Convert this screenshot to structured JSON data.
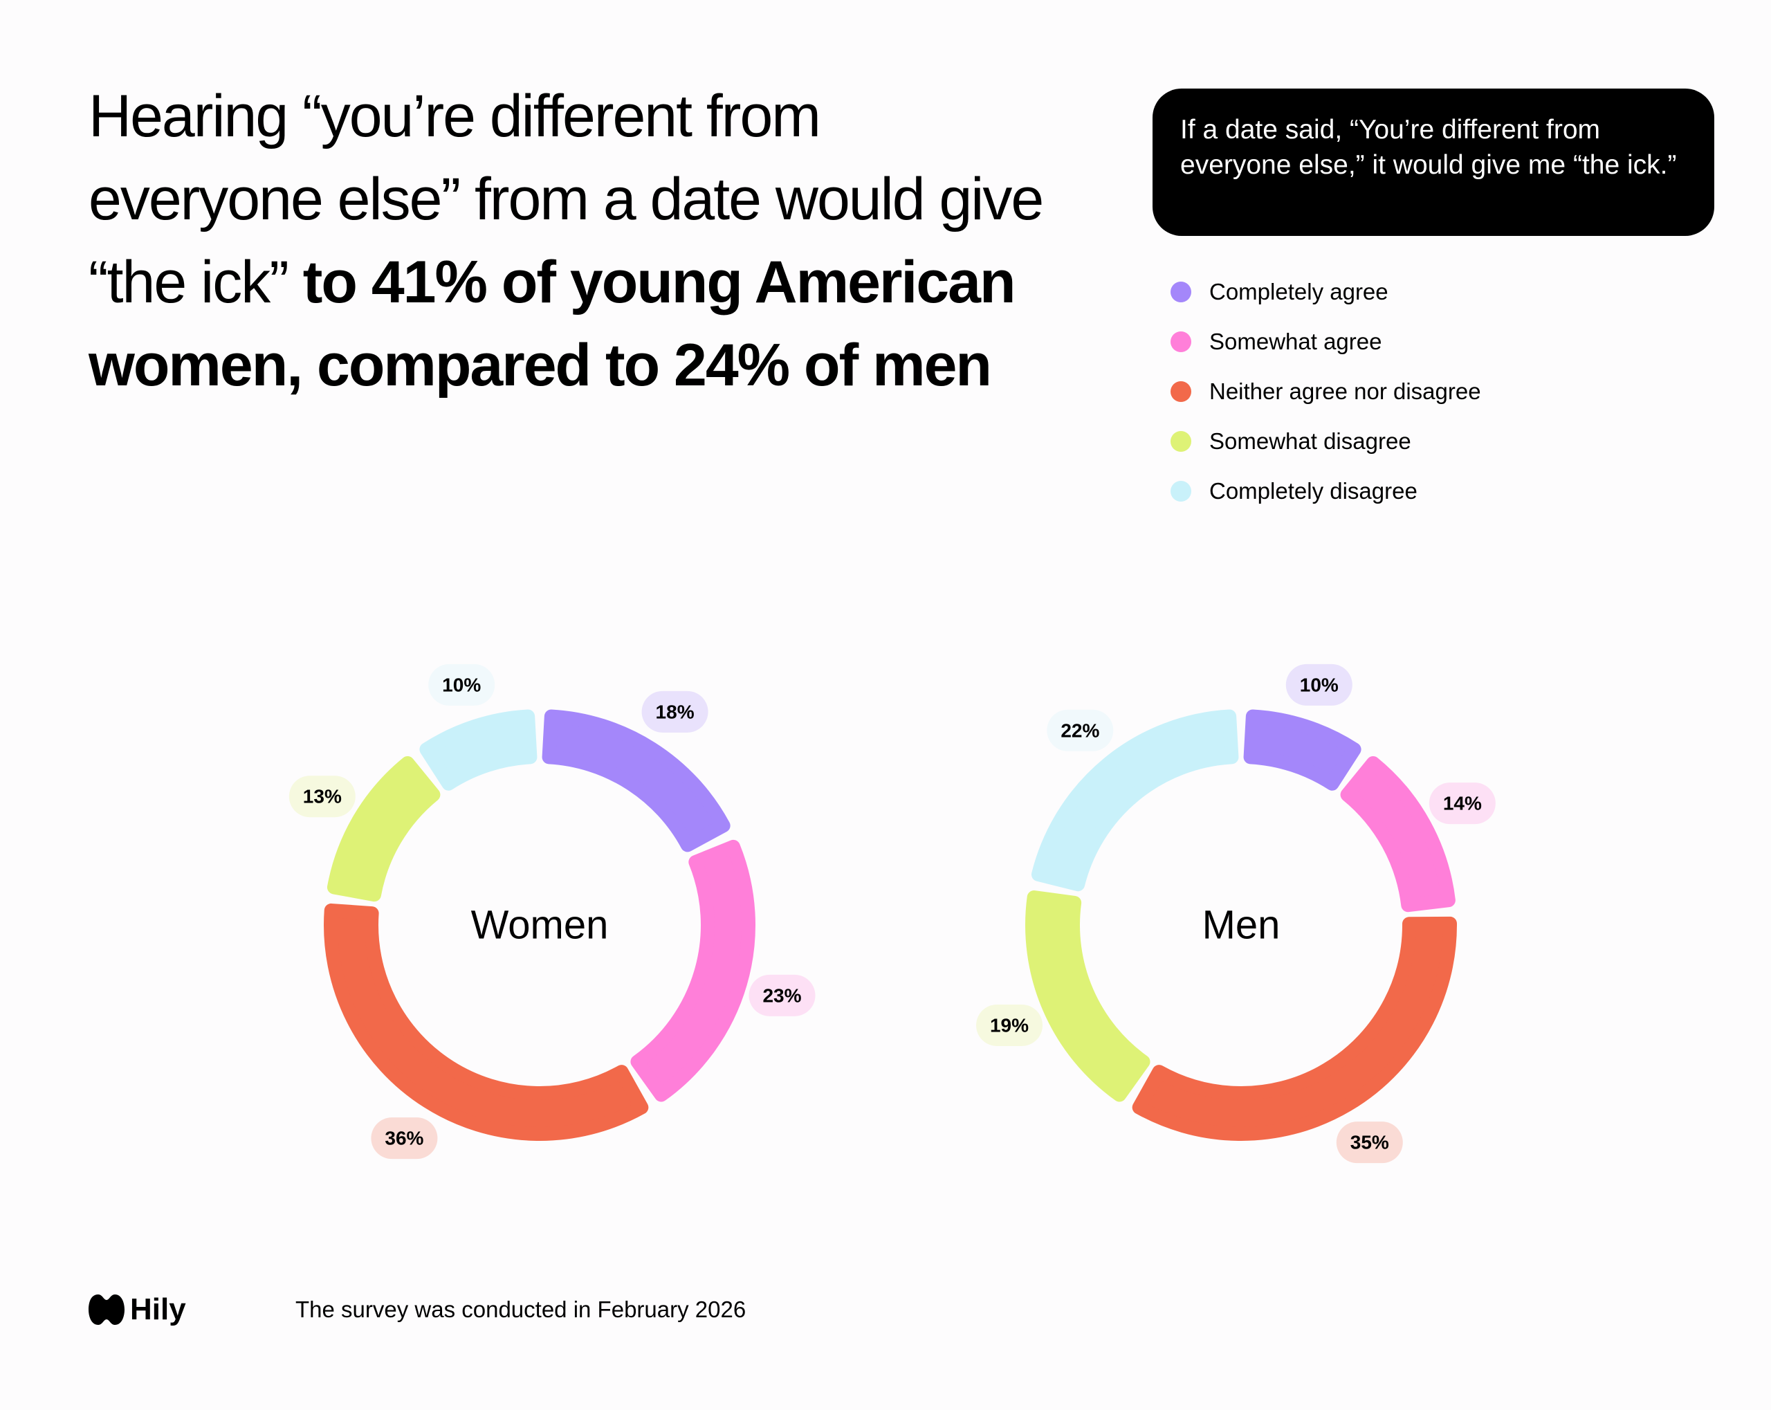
{
  "headline": {
    "regular": "Hearing “you’re different from everyone else” from a date would give “the ick”",
    "bold": "to 41% of young American women, compared to 24% of men"
  },
  "question": "If a date said, “You’re different from everyone else,” it would give me “the ick.”",
  "brand": "Hily",
  "footnote": "The survey was conducted in February 2026",
  "chart_data": [
    {
      "type": "pie",
      "label": "Women",
      "categories": [
        "Completely agree",
        "Somewhat agree",
        "Neither agree nor disagree",
        "Somewhat disagree",
        "Completely disagree"
      ],
      "colors": [
        "#a487fa",
        "#ff7fd9",
        "#f2694a",
        "#def276",
        "#c9f1fa"
      ],
      "values": [
        18,
        23,
        36,
        13,
        10
      ],
      "value_labels": [
        "18%",
        "23%",
        "36%",
        "13%",
        "10%"
      ]
    },
    {
      "type": "pie",
      "label": "Men",
      "categories": [
        "Completely agree",
        "Somewhat agree",
        "Neither agree nor disagree",
        "Somewhat disagree",
        "Completely disagree"
      ],
      "colors": [
        "#a487fa",
        "#ff7fd9",
        "#f2694a",
        "#def276",
        "#c9f1fa"
      ],
      "values": [
        10,
        14,
        35,
        19,
        22
      ],
      "value_labels": [
        "10%",
        "14%",
        "35%",
        "19%",
        "22%"
      ]
    }
  ]
}
